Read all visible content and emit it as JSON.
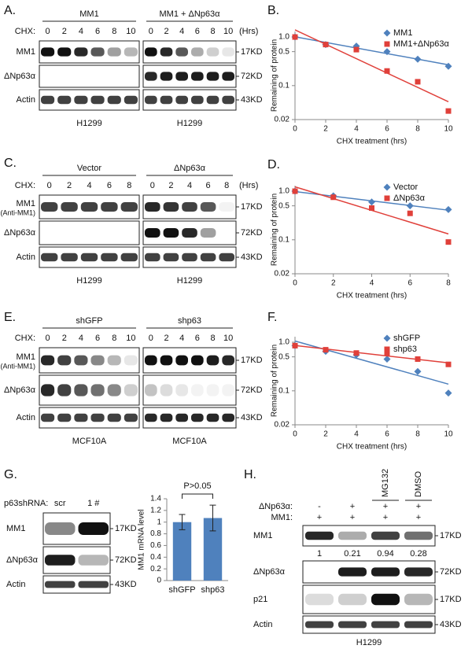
{
  "blots": [
    {
      "panel": "A.",
      "lane_label": "CHX:",
      "unit": "(Hrs)",
      "groups": [
        {
          "name": "MM1",
          "lanes": [
            "0",
            "2",
            "4",
            "6",
            "8",
            "10"
          ],
          "cell": "H1299"
        },
        {
          "name": "MM1 + ΔNp63α",
          "lanes": [
            "0",
            "2",
            "4",
            "6",
            "8",
            "10"
          ],
          "cell": "H1299"
        }
      ],
      "rows": [
        {
          "name": "MM1",
          "marker": "17KD"
        },
        {
          "name": "ΔNp63α",
          "marker": "72KD"
        },
        {
          "name": "Actin",
          "marker": "43KD"
        }
      ]
    },
    {
      "panel": "C.",
      "lane_label": "CHX:",
      "unit": "(Hrs)",
      "groups": [
        {
          "name": "Vector",
          "lanes": [
            "0",
            "2",
            "4",
            "6",
            "8"
          ],
          "cell": "H1299"
        },
        {
          "name": "ΔNp63α",
          "lanes": [
            "0",
            "2",
            "4",
            "6",
            "8"
          ],
          "cell": "H1299"
        }
      ],
      "rows": [
        {
          "name": "MM1",
          "note": "(Anti-MM1)",
          "marker": "17KD"
        },
        {
          "name": "ΔNp63α",
          "marker": "72KD"
        },
        {
          "name": "Actin",
          "marker": "43KD"
        }
      ]
    },
    {
      "panel": "E.",
      "lane_label": "CHX:",
      "groups": [
        {
          "name": "shGFP",
          "lanes": [
            "0",
            "2",
            "4",
            "6",
            "8",
            "10"
          ],
          "cell": "MCF10A"
        },
        {
          "name": "shp63",
          "lanes": [
            "0",
            "2",
            "4",
            "6",
            "8",
            "10"
          ],
          "cell": "MCF10A"
        }
      ],
      "rows": [
        {
          "name": "MM1",
          "note": "(Anti-MM1)",
          "marker": "17KD"
        },
        {
          "name": "ΔNp63α",
          "marker": "72KD"
        },
        {
          "name": "Actin",
          "marker": "43KD"
        }
      ]
    },
    {
      "panel": "G.",
      "lane_label": "p63shRNA:",
      "groups": [
        {
          "lanes": [
            "scr",
            "1 #"
          ]
        }
      ],
      "rows": [
        {
          "name": "MM1",
          "marker": "17KD"
        },
        {
          "name": "ΔNp63α",
          "marker": "72KD"
        },
        {
          "name": "Actin",
          "marker": "43KD"
        }
      ]
    }
  ],
  "blot_h": {
    "panel": "H.",
    "conditions": [
      {
        "name": "ΔNp63α:",
        "values": [
          "-",
          "+",
          "+",
          "+"
        ]
      },
      {
        "name": "MM1:",
        "values": [
          "+",
          "+",
          "+",
          "+"
        ]
      }
    ],
    "treatments": [
      null,
      null,
      "MG132",
      "DMSO"
    ],
    "quantification": [
      1,
      0.21,
      0.94,
      0.28
    ],
    "rows": [
      {
        "name": "MM1",
        "marker": "17KD"
      },
      {
        "name": "ΔNp63α",
        "marker": "72KD"
      },
      {
        "name": "p21",
        "marker": "17KD"
      },
      {
        "name": "Actin",
        "marker": "43KD"
      }
    ],
    "cell": "H1299"
  },
  "chart_data": [
    {
      "panel": "B.",
      "type": "scatter",
      "yscale": "log",
      "trendline": true,
      "legend": "upper right",
      "x": [
        0,
        2,
        4,
        6,
        8,
        10
      ],
      "series": [
        {
          "name": "MM1",
          "color": "#4f81bd",
          "marker": "diamond",
          "values": [
            1.0,
            0.7,
            0.65,
            0.5,
            0.35,
            0.25
          ]
        },
        {
          "name": "MM1+ΔNp63α",
          "color": "#e0403a",
          "marker": "square",
          "values": [
            1.0,
            0.7,
            0.55,
            0.2,
            0.12,
            0.03
          ]
        }
      ],
      "xlim": [
        0,
        10
      ],
      "xticks": [
        0,
        2,
        4,
        6,
        8,
        10
      ],
      "ylim": [
        0.02,
        1.3
      ],
      "yticks": [
        {
          "value": 1,
          "label": "1.0"
        },
        0.5,
        0.1,
        0.02
      ],
      "xlabel": "CHX treatment (hrs)",
      "ylabel": "Remaining of protein"
    },
    {
      "panel": "D.",
      "type": "scatter",
      "yscale": "log",
      "trendline": true,
      "legend": "upper right",
      "x": [
        0,
        2,
        4,
        6,
        8
      ],
      "series": [
        {
          "name": "Vector",
          "color": "#4f81bd",
          "marker": "diamond",
          "values": [
            1.0,
            0.8,
            0.6,
            0.5,
            0.42
          ]
        },
        {
          "name": "ΔNp63α",
          "color": "#e0403a",
          "marker": "square",
          "values": [
            1.0,
            0.75,
            0.45,
            0.35,
            0.09
          ]
        }
      ],
      "xlim": [
        0,
        8
      ],
      "xticks": [
        0,
        2,
        4,
        6,
        8
      ],
      "ylim": [
        0.02,
        1.3
      ],
      "yticks": [
        {
          "value": 1,
          "label": "1.0"
        },
        0.5,
        0.1,
        0.02
      ],
      "xlabel": "CHX treatment (hrs)",
      "ylabel": "Remaining of protein"
    },
    {
      "panel": "F.",
      "type": "scatter",
      "yscale": "log",
      "trendline": true,
      "legend": "upper right",
      "x": [
        0,
        2,
        4,
        6,
        8,
        10
      ],
      "series": [
        {
          "name": "shGFP",
          "color": "#4f81bd",
          "marker": "diamond",
          "values": [
            0.85,
            0.65,
            0.55,
            0.45,
            0.25,
            0.09
          ]
        },
        {
          "name": "shp63",
          "color": "#e0403a",
          "marker": "square",
          "values": [
            0.85,
            0.7,
            0.6,
            0.6,
            0.45,
            0.35
          ]
        }
      ],
      "xlim": [
        0,
        10
      ],
      "xticks": [
        0,
        2,
        4,
        6,
        8,
        10
      ],
      "ylim": [
        0.02,
        1.3
      ],
      "yticks": [
        {
          "value": 1,
          "label": "1.0"
        },
        0.5,
        0.1,
        0.02
      ],
      "xlabel": "CHX treatment (hrs)",
      "ylabel": "Remaining of protein"
    },
    {
      "type": "bar",
      "categories": [
        "shGFP",
        "shp63"
      ],
      "values": [
        1,
        1.07
      ],
      "errors": [
        0.13,
        0.22
      ],
      "color": "#4f81bd",
      "ylim": [
        0,
        1.4
      ],
      "yticks": [
        0,
        0.2,
        0.4,
        0.6,
        0.8,
        1,
        1.2,
        1.4
      ],
      "ylabel": "MM1 mRNA level",
      "annotation": "P>0.05"
    }
  ]
}
